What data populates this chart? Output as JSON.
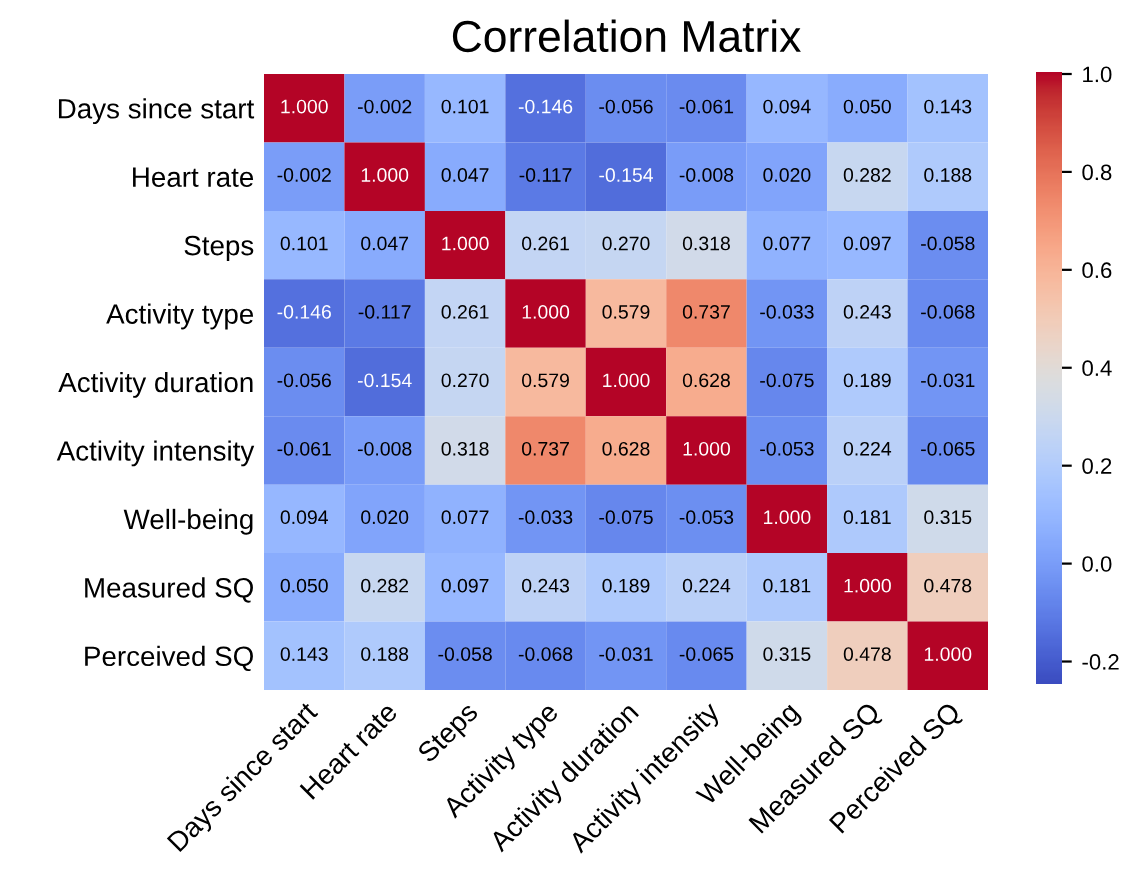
{
  "chart_data": {
    "type": "heatmap",
    "title": "Correlation Matrix",
    "categories": [
      "Days since start",
      "Heart rate",
      "Steps",
      "Activity type",
      "Activity duration",
      "Activity intensity",
      "Well-being",
      "Measured SQ",
      "Perceived SQ"
    ],
    "y_categories": [
      "Days since start",
      "Heart rate",
      "Steps",
      "Activity type",
      "Activity duration",
      "Activity intensity",
      "Well-being",
      "Measured SQ",
      "Perceived SQ"
    ],
    "cells": [
      [
        1.0,
        -0.002,
        0.101,
        -0.146,
        -0.056,
        -0.061,
        0.094,
        0.05,
        0.143
      ],
      [
        -0.002,
        1.0,
        0.047,
        -0.117,
        -0.154,
        -0.008,
        0.02,
        0.282,
        0.188
      ],
      [
        0.101,
        0.047,
        1.0,
        0.261,
        0.27,
        0.318,
        0.077,
        0.097,
        -0.058
      ],
      [
        -0.146,
        -0.117,
        0.261,
        1.0,
        0.579,
        0.737,
        -0.033,
        0.243,
        -0.068
      ],
      [
        -0.056,
        -0.154,
        0.27,
        0.579,
        1.0,
        0.628,
        -0.075,
        0.189,
        -0.031
      ],
      [
        -0.061,
        -0.008,
        0.318,
        0.737,
        0.628,
        1.0,
        -0.053,
        0.224,
        -0.065
      ],
      [
        0.094,
        0.02,
        0.077,
        -0.033,
        -0.075,
        -0.053,
        1.0,
        0.181,
        0.315
      ],
      [
        0.05,
        0.282,
        0.097,
        0.243,
        0.189,
        0.224,
        0.181,
        1.0,
        0.478
      ],
      [
        0.143,
        0.188,
        -0.058,
        -0.068,
        -0.031,
        -0.065,
        0.315,
        0.478,
        1.0
      ]
    ],
    "cell_labels": [
      [
        "1.000",
        "-0.002",
        "0.101",
        "-0.146",
        "-0.056",
        "-0.061",
        "0.094",
        "0.050",
        "0.143"
      ],
      [
        "-0.002",
        "1.000",
        "0.047",
        "-0.117",
        "-0.154",
        "-0.008",
        "0.020",
        "0.282",
        "0.188"
      ],
      [
        "0.101",
        "0.047",
        "1.000",
        "0.261",
        "0.270",
        "0.318",
        "0.077",
        "0.097",
        "-0.058"
      ],
      [
        "-0.146",
        "-0.117",
        "0.261",
        "1.000",
        "0.579",
        "0.737",
        "-0.033",
        "0.243",
        "-0.068"
      ],
      [
        "-0.056",
        "-0.154",
        "0.270",
        "0.579",
        "1.000",
        "0.628",
        "-0.075",
        "0.189",
        "-0.031"
      ],
      [
        "-0.061",
        "-0.008",
        "0.318",
        "0.737",
        "0.628",
        "1.000",
        "-0.053",
        "0.224",
        "-0.065"
      ],
      [
        "0.094",
        "0.020",
        "0.077",
        "-0.033",
        "-0.075",
        "-0.053",
        "1.000",
        "0.181",
        "0.315"
      ],
      [
        "0.050",
        "0.282",
        "0.097",
        "0.243",
        "0.189",
        "0.224",
        "0.181",
        "1.000",
        "0.478"
      ],
      [
        "0.143",
        "0.188",
        "-0.058",
        "-0.068",
        "-0.031",
        "-0.065",
        "0.315",
        "0.478",
        "1.000"
      ]
    ],
    "clim": [
      -0.25,
      1.0
    ],
    "cticks": [
      {
        "value": -0.2,
        "label": "-0.2"
      },
      {
        "value": 0.0,
        "label": "0.0"
      },
      {
        "value": 0.2,
        "label": "0.2"
      },
      {
        "value": 0.4,
        "label": "0.4"
      },
      {
        "value": 0.6,
        "label": "0.6"
      },
      {
        "value": 0.8,
        "label": "0.8"
      },
      {
        "value": 1.0,
        "label": "1.0"
      }
    ]
  }
}
